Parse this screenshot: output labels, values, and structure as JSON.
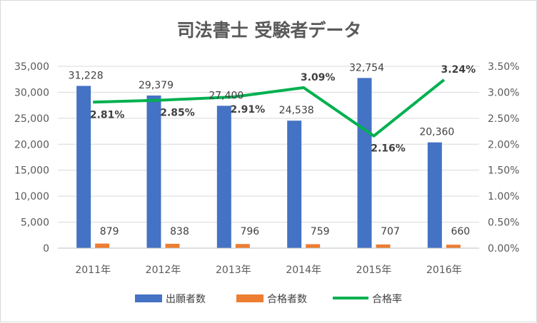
{
  "chart_data": {
    "type": "bar",
    "title": "司法書士 受験者データ",
    "categories": [
      "2011年",
      "2012年",
      "2013年",
      "2014年",
      "2015年",
      "2016年"
    ],
    "series": [
      {
        "name": "出願者数",
        "kind": "bar",
        "axis": "left",
        "color": "#4472c4",
        "values": [
          31228,
          29379,
          27400,
          24538,
          32754,
          20360
        ],
        "labels": [
          "31,228",
          "29,379",
          "27,400",
          "24,538",
          "32,754",
          "20,360"
        ]
      },
      {
        "name": "合格者数",
        "kind": "bar",
        "axis": "left",
        "color": "#ed7d31",
        "values": [
          879,
          838,
          796,
          759,
          707,
          660
        ],
        "labels": [
          "879",
          "838",
          "796",
          "759",
          "707",
          "660"
        ]
      },
      {
        "name": "合格率",
        "kind": "line",
        "axis": "right",
        "color": "#00b050",
        "values": [
          2.81,
          2.85,
          2.91,
          3.09,
          2.16,
          3.24
        ],
        "labels": [
          "2.81%",
          "2.85%",
          "2.91%",
          "3.09%",
          "2.16%",
          "3.24%"
        ]
      }
    ],
    "y_left": {
      "min": 0,
      "max": 35000,
      "step": 5000,
      "ticks": [
        "0",
        "5,000",
        "10,000",
        "15,000",
        "20,000",
        "25,000",
        "30,000",
        "35,000"
      ]
    },
    "y_right": {
      "min": 0,
      "max": 3.5,
      "step": 0.5,
      "ticks": [
        "0.00%",
        "0.50%",
        "1.00%",
        "1.50%",
        "2.00%",
        "2.50%",
        "3.00%",
        "3.50%"
      ]
    },
    "grid": true,
    "legend_position": "bottom"
  }
}
